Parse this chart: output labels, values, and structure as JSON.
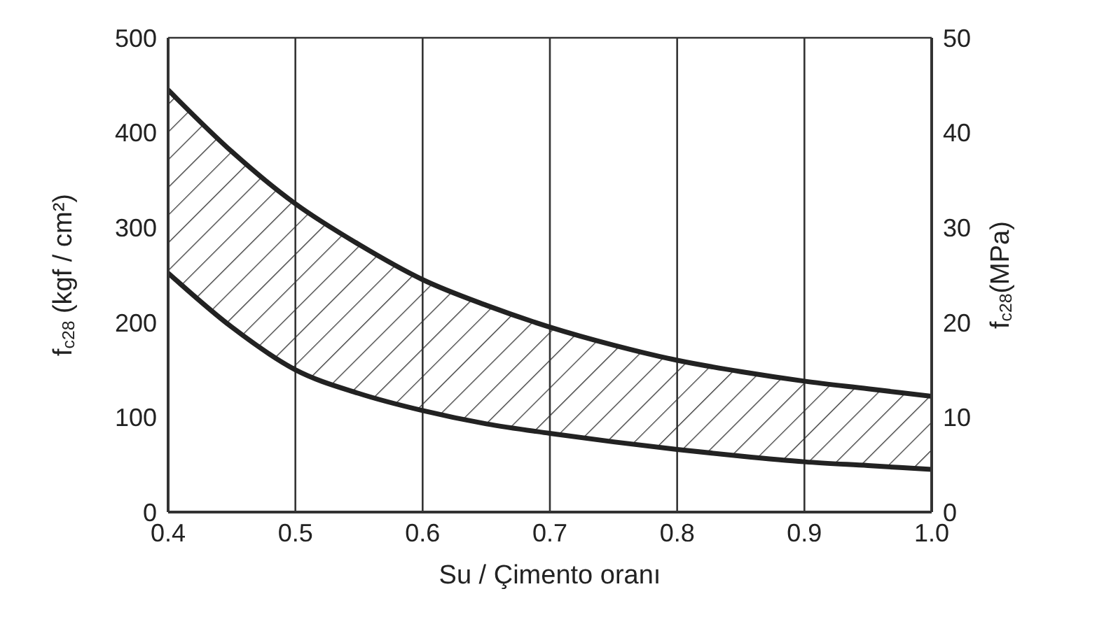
{
  "chart_data": {
    "type": "line",
    "xlabel": "Su / Çimento oranı",
    "ylabel": "f$_{c28}$ (kgf / cm²)",
    "y2label": "f$_{c28}$(MPa)",
    "x": [
      0.4,
      0.45,
      0.5,
      0.55,
      0.6,
      0.65,
      0.7,
      0.75,
      0.8,
      0.85,
      0.9,
      0.95,
      1.0
    ],
    "series": [
      {
        "color": "#222222",
        "values": [
          445,
          380,
          325,
          282,
          245,
          218,
          195,
          176,
          160,
          148,
          138,
          130,
          122
        ],
        "upper": [
          445,
          380,
          325,
          282,
          245,
          218,
          195,
          176,
          160,
          148,
          138,
          130,
          122
        ],
        "lower": [
          252,
          195,
          150,
          125,
          107,
          93,
          83,
          74,
          66,
          59,
          53,
          49,
          45
        ]
      },
      {
        "color": "#222222",
        "values": [
          252,
          195,
          150,
          125,
          107,
          93,
          83,
          74,
          66,
          59,
          53,
          49,
          45
        ]
      }
    ],
    "xlim": [
      0.4,
      1.0
    ],
    "xticks": [
      {
        "value": 0.4,
        "label": "0.4"
      },
      {
        "value": 0.5,
        "label": "0.5"
      },
      {
        "value": 0.6,
        "label": "0.6"
      },
      {
        "value": 0.7,
        "label": "0.7"
      },
      {
        "value": 0.8,
        "label": "0.8"
      },
      {
        "value": 0.9,
        "label": "0.9"
      },
      {
        "value": 1.0,
        "label": "1.0"
      }
    ],
    "ylim": [
      0,
      500
    ],
    "yticks": [
      0,
      100,
      200,
      300,
      400,
      500
    ],
    "y2lim": [
      0,
      50
    ],
    "y2ticks": [
      0,
      10,
      20,
      30,
      40,
      50
    ],
    "grid": true,
    "legend": false,
    "marker": "none",
    "line_style": "solid"
  }
}
